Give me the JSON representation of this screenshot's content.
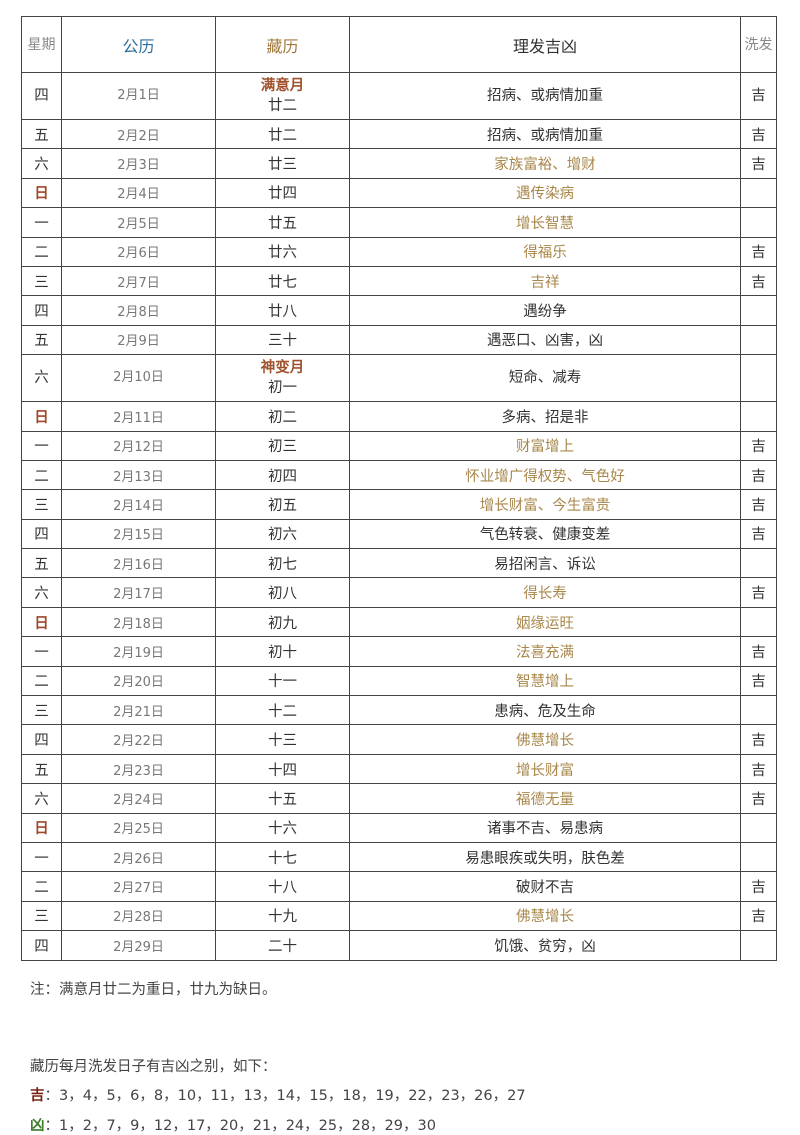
{
  "header": {
    "week": "星期",
    "greg": "公历",
    "tib": "藏历",
    "desc": "理发吉凶",
    "wash": "洗发"
  },
  "colors": {
    "greg_header": "#2e6f9e",
    "tib_header": "#a07a3a",
    "auspicious": "#a8874a",
    "sunday": "#a0462a"
  },
  "rows": [
    {
      "week": "四",
      "greg": "2月1日",
      "month": "满意月",
      "tib": "廿二",
      "desc": "招病、或病情加重",
      "good": false,
      "wash": "吉"
    },
    {
      "week": "五",
      "greg": "2月2日",
      "tib": "廿二",
      "desc": "招病、或病情加重",
      "good": false,
      "wash": "吉"
    },
    {
      "week": "六",
      "greg": "2月3日",
      "tib": "廿三",
      "desc": "家族富裕、增财",
      "good": true,
      "wash": "吉"
    },
    {
      "week": "日",
      "greg": "2月4日",
      "tib": "廿四",
      "desc": "遇传染病",
      "good": true,
      "wash": ""
    },
    {
      "week": "一",
      "greg": "2月5日",
      "tib": "廿五",
      "desc": "增长智慧",
      "good": true,
      "wash": ""
    },
    {
      "week": "二",
      "greg": "2月6日",
      "tib": "廿六",
      "desc": "得福乐",
      "good": true,
      "wash": "吉"
    },
    {
      "week": "三",
      "greg": "2月7日",
      "tib": "廿七",
      "desc": "吉祥",
      "good": true,
      "wash": "吉"
    },
    {
      "week": "四",
      "greg": "2月8日",
      "tib": "廿八",
      "desc": "遇纷争",
      "good": false,
      "wash": ""
    },
    {
      "week": "五",
      "greg": "2月9日",
      "tib": "三十",
      "desc": "遇恶口、凶害，凶",
      "good": false,
      "wash": ""
    },
    {
      "week": "六",
      "greg": "2月10日",
      "month": "神变月",
      "tib": "初一",
      "desc": "短命、减寿",
      "good": false,
      "wash": ""
    },
    {
      "week": "日",
      "greg": "2月11日",
      "tib": "初二",
      "desc": "多病、招是非",
      "good": false,
      "wash": ""
    },
    {
      "week": "一",
      "greg": "2月12日",
      "tib": "初三",
      "desc": "财富增上",
      "good": true,
      "wash": "吉"
    },
    {
      "week": "二",
      "greg": "2月13日",
      "tib": "初四",
      "desc": "怀业增广得权势、气色好",
      "good": true,
      "wash": "吉"
    },
    {
      "week": "三",
      "greg": "2月14日",
      "tib": "初五",
      "desc": "增长财富、今生富贵",
      "good": true,
      "wash": "吉"
    },
    {
      "week": "四",
      "greg": "2月15日",
      "tib": "初六",
      "desc": "气色转衰、健康变差",
      "good": false,
      "wash": "吉"
    },
    {
      "week": "五",
      "greg": "2月16日",
      "tib": "初七",
      "desc": "易招闲言、诉讼",
      "good": false,
      "wash": ""
    },
    {
      "week": "六",
      "greg": "2月17日",
      "tib": "初八",
      "desc": "得长寿",
      "good": true,
      "wash": "吉"
    },
    {
      "week": "日",
      "greg": "2月18日",
      "tib": "初九",
      "desc": "姻缘运旺",
      "good": true,
      "wash": ""
    },
    {
      "week": "一",
      "greg": "2月19日",
      "tib": "初十",
      "desc": "法喜充满",
      "good": true,
      "wash": "吉"
    },
    {
      "week": "二",
      "greg": "2月20日",
      "tib": "十一",
      "desc": "智慧增上",
      "good": true,
      "wash": "吉"
    },
    {
      "week": "三",
      "greg": "2月21日",
      "tib": "十二",
      "desc": "患病、危及生命",
      "good": false,
      "wash": ""
    },
    {
      "week": "四",
      "greg": "2月22日",
      "tib": "十三",
      "desc": "佛慧增长",
      "good": true,
      "wash": "吉"
    },
    {
      "week": "五",
      "greg": "2月23日",
      "tib": "十四",
      "desc": "增长财富",
      "good": true,
      "wash": "吉"
    },
    {
      "week": "六",
      "greg": "2月24日",
      "tib": "十五",
      "desc": "福德无量",
      "good": true,
      "wash": "吉"
    },
    {
      "week": "日",
      "greg": "2月25日",
      "tib": "十六",
      "desc": "诸事不吉、易患病",
      "good": false,
      "wash": ""
    },
    {
      "week": "一",
      "greg": "2月26日",
      "tib": "十七",
      "desc": "易患眼疾或失明，肤色差",
      "good": false,
      "wash": ""
    },
    {
      "week": "二",
      "greg": "2月27日",
      "tib": "十八",
      "desc": "破财不吉",
      "good": false,
      "wash": "吉"
    },
    {
      "week": "三",
      "greg": "2月28日",
      "tib": "十九",
      "desc": "佛慧增长",
      "good": true,
      "wash": "吉"
    },
    {
      "week": "四",
      "greg": "2月29日",
      "tib": "二十",
      "desc": "饥饿、贫穷，凶",
      "good": false,
      "wash": ""
    }
  ],
  "footnote": "注：满意月廿二为重日，廿九为缺日。",
  "wash_intro": "藏历每月洗发日子有吉凶之别，如下：",
  "lucky": {
    "label": "吉",
    "days": "：3，4，5，6，8，10，11，13，14，15，18，19，22，23，26，27"
  },
  "unlucky": {
    "label": "凶",
    "days": "：1，2，7，9，12，17，20，21，24，25，28，29，30"
  }
}
